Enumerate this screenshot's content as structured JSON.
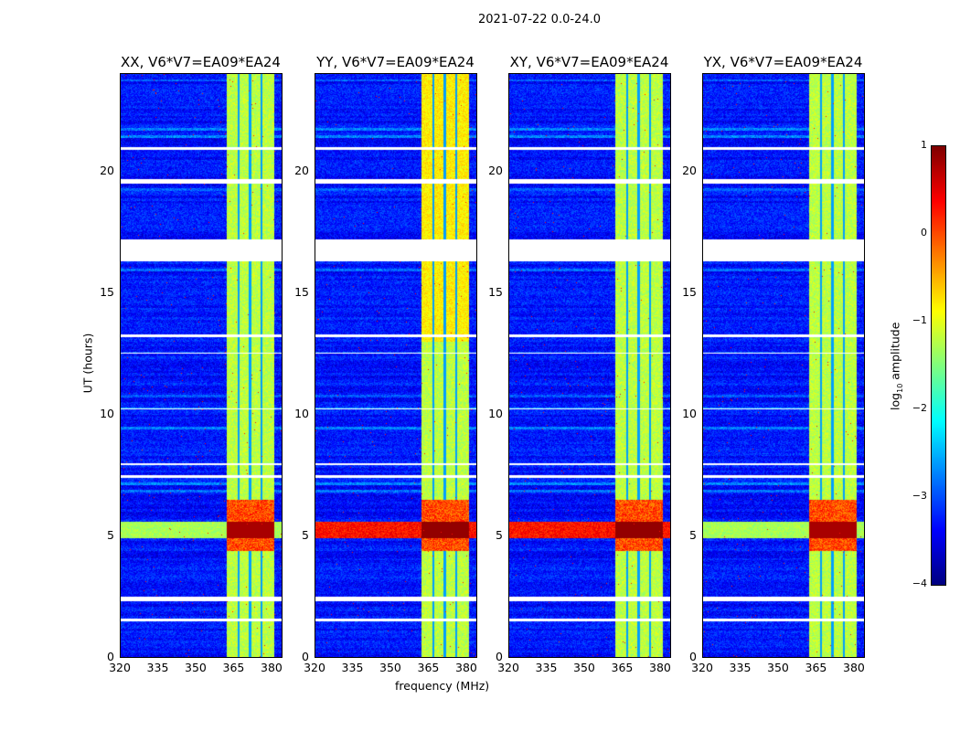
{
  "chart_data": {
    "type": "heatmap",
    "suptitle": "2021-07-22 0.0-24.0",
    "panels": [
      {
        "title": "XX, V6*V7=EA09*EA24"
      },
      {
        "title": "YY, V6*V7=EA09*EA24"
      },
      {
        "title": "XY, V6*V7=EA09*EA24"
      },
      {
        "title": "YX, V6*V7=EA09*EA24"
      }
    ],
    "xlabel": "frequency (MHz)",
    "ylabel": "UT (hours)",
    "xlim": [
      320,
      384
    ],
    "ylim": [
      0,
      24
    ],
    "xticks": [
      "320",
      "335",
      "350",
      "365",
      "380"
    ],
    "xtick_values": [
      320,
      335,
      350,
      365,
      380
    ],
    "yticks": [
      "0",
      "5",
      "10",
      "15",
      "20"
    ],
    "ytick_values": [
      0,
      5,
      10,
      15,
      20
    ],
    "colorbar": {
      "label": "log",
      "label_sub": "10",
      "label_suffix": " amplitude",
      "range": [
        -4,
        1
      ],
      "ticks": [
        "1",
        "0",
        "−1",
        "−2",
        "−3",
        "−4"
      ],
      "tick_values": [
        1,
        0,
        -1,
        -2,
        -3,
        -4
      ],
      "colormap": "jet"
    },
    "features": {
      "background_level": -3.3,
      "rfi_band_mhz": [
        362,
        381
      ],
      "rfi_band_level": -1.2,
      "strong_rfi_hours": [
        4.9,
        5.6
      ],
      "flagged_hours": [
        [
          16.3,
          17.2
        ],
        [
          19.5,
          19.7
        ],
        [
          20.9,
          21.0
        ],
        [
          7.4,
          7.5
        ],
        [
          7.9,
          8.0
        ],
        [
          2.3,
          2.5
        ],
        [
          1.5,
          1.6
        ],
        [
          10.2,
          10.25
        ],
        [
          12.5,
          12.55
        ],
        [
          13.2,
          13.3
        ]
      ]
    }
  }
}
